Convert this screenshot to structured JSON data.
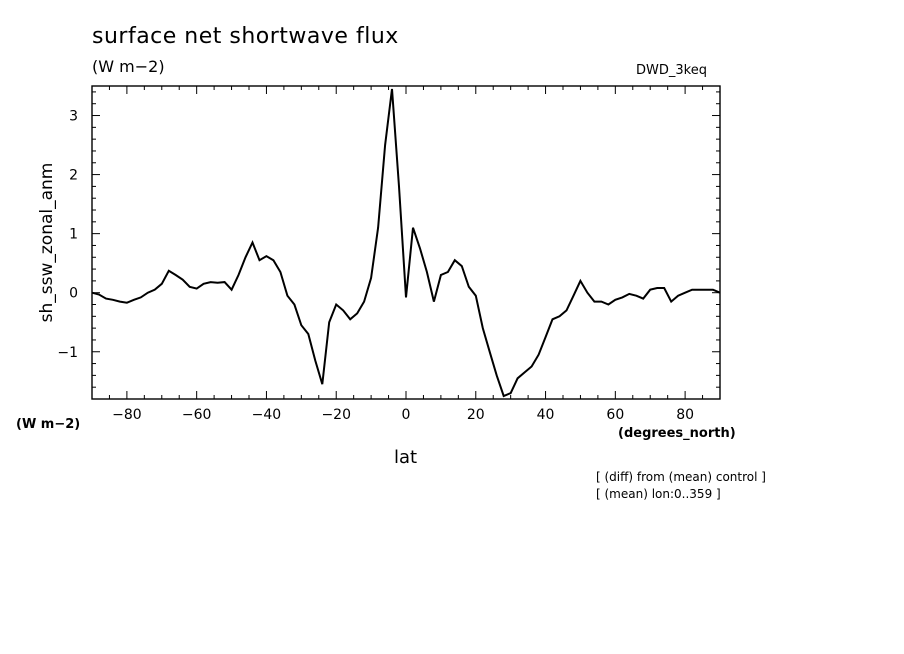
{
  "header": {
    "title": "surface net shortwave flux",
    "units": "(W m−2)",
    "run_label": "DWD_3keq"
  },
  "axes": {
    "ylabel": "sh_ssw_zonal_anm",
    "yunits": "(W m−2)",
    "xlabel": "lat",
    "xunits": "(degrees_north)"
  },
  "notes": [
    "[ (diff) from (mean) control ]",
    "[ (mean) lon:0..359 ]"
  ],
  "chart_data": {
    "type": "line",
    "title": "surface net shortwave flux",
    "xlabel": "lat",
    "ylabel": "sh_ssw_zonal_anm",
    "xlim": [
      -90,
      90
    ],
    "ylim": [
      -1.8,
      3.5
    ],
    "xticks": [
      -80,
      -60,
      -40,
      -20,
      0,
      20,
      40,
      60,
      80
    ],
    "yticks": [
      -1,
      0,
      1,
      2,
      3
    ],
    "xtick_labels": [
      "−80",
      "−60",
      "−40",
      "−20",
      "0",
      "20",
      "40",
      "60",
      "80"
    ],
    "ytick_labels": [
      "−1",
      "0",
      "1",
      "2",
      "3"
    ],
    "grid": false,
    "x": [
      -90,
      -88,
      -86,
      -84,
      -82,
      -80,
      -78,
      -76,
      -74,
      -72,
      -70,
      -68,
      -66,
      -64,
      -62,
      -60,
      -58,
      -56,
      -54,
      -52,
      -50,
      -48,
      -46,
      -44,
      -42,
      -40,
      -38,
      -36,
      -34,
      -32,
      -30,
      -28,
      -26,
      -24,
      -22,
      -20,
      -18,
      -16,
      -14,
      -12,
      -10,
      -8,
      -6,
      -4,
      -2,
      0,
      2,
      4,
      6,
      8,
      10,
      12,
      14,
      16,
      18,
      20,
      22,
      24,
      26,
      28,
      30,
      32,
      34,
      36,
      38,
      40,
      42,
      44,
      46,
      48,
      50,
      52,
      54,
      56,
      58,
      60,
      62,
      64,
      66,
      68,
      70,
      72,
      74,
      76,
      78,
      80,
      82,
      84,
      86,
      88,
      90
    ],
    "series": [
      {
        "values": [
          0.0,
          -0.03,
          -0.1,
          -0.12,
          -0.15,
          -0.17,
          -0.12,
          -0.08,
          0.0,
          0.05,
          0.15,
          0.37,
          0.3,
          0.22,
          0.1,
          0.07,
          0.15,
          0.18,
          0.17,
          0.18,
          0.05,
          0.3,
          0.6,
          0.85,
          0.55,
          0.62,
          0.55,
          0.35,
          -0.05,
          -0.2,
          -0.55,
          -0.7,
          -1.15,
          -1.55,
          -0.5,
          -0.2,
          -0.3,
          -0.45,
          -0.35,
          -0.15,
          0.25,
          1.1,
          2.5,
          3.45,
          1.8,
          -0.08,
          1.1,
          0.75,
          0.35,
          -0.15,
          0.3,
          0.35,
          0.55,
          0.45,
          0.1,
          -0.05,
          -0.6,
          -1.0,
          -1.4,
          -1.75,
          -1.7,
          -1.45,
          -1.35,
          -1.25,
          -1.05,
          -0.75,
          -0.45,
          -0.4,
          -0.3,
          -0.05,
          0.2,
          0.0,
          -0.15,
          -0.15,
          -0.2,
          -0.12,
          -0.08,
          -0.02,
          -0.05,
          -0.1,
          0.05,
          0.08,
          0.08,
          -0.15,
          -0.05,
          0.0,
          0.05,
          0.05,
          0.05,
          0.05,
          0.0
        ]
      }
    ]
  }
}
